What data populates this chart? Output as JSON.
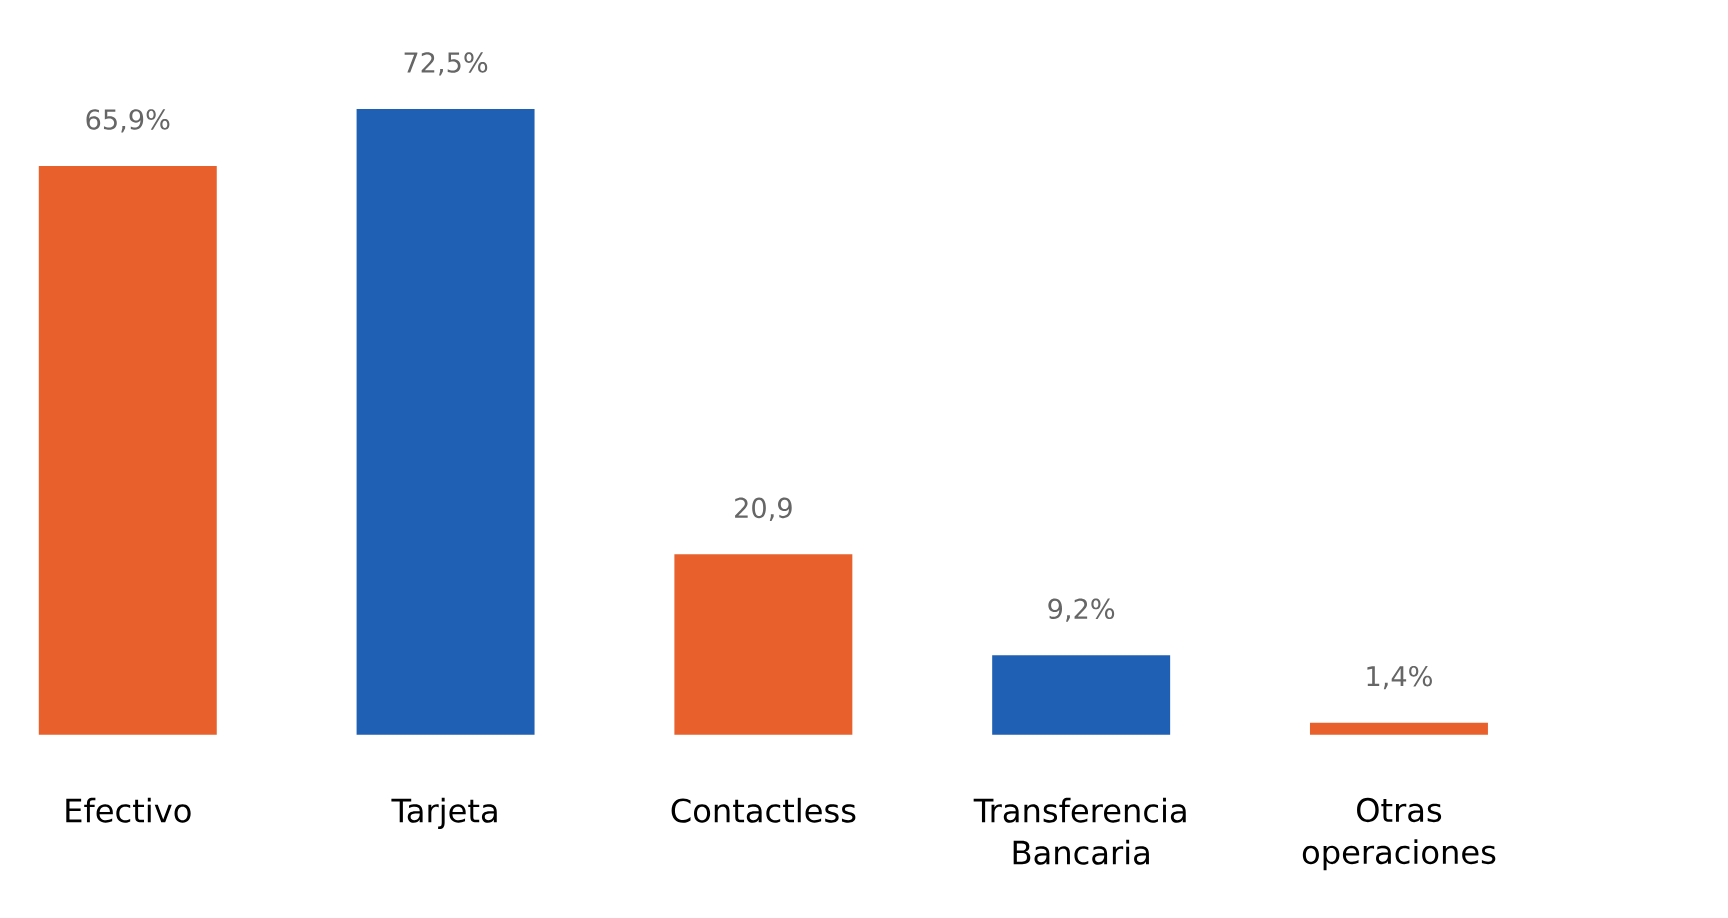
{
  "chart_data": {
    "type": "bar",
    "categories": [
      "Efectivo",
      "Tarjeta",
      "Contactless",
      "Transferencia Bancaria",
      "Otras operaciones"
    ],
    "values": [
      65.9,
      72.5,
      20.9,
      9.2,
      1.4
    ],
    "colors": [
      "#e8602c",
      "#1f5fb4",
      "#e8602c",
      "#1f5fb4",
      "#e8602c"
    ],
    "value_labels": [
      "65,9%",
      "72,5%",
      "20,9",
      "9,2%",
      "1,4%"
    ]
  }
}
